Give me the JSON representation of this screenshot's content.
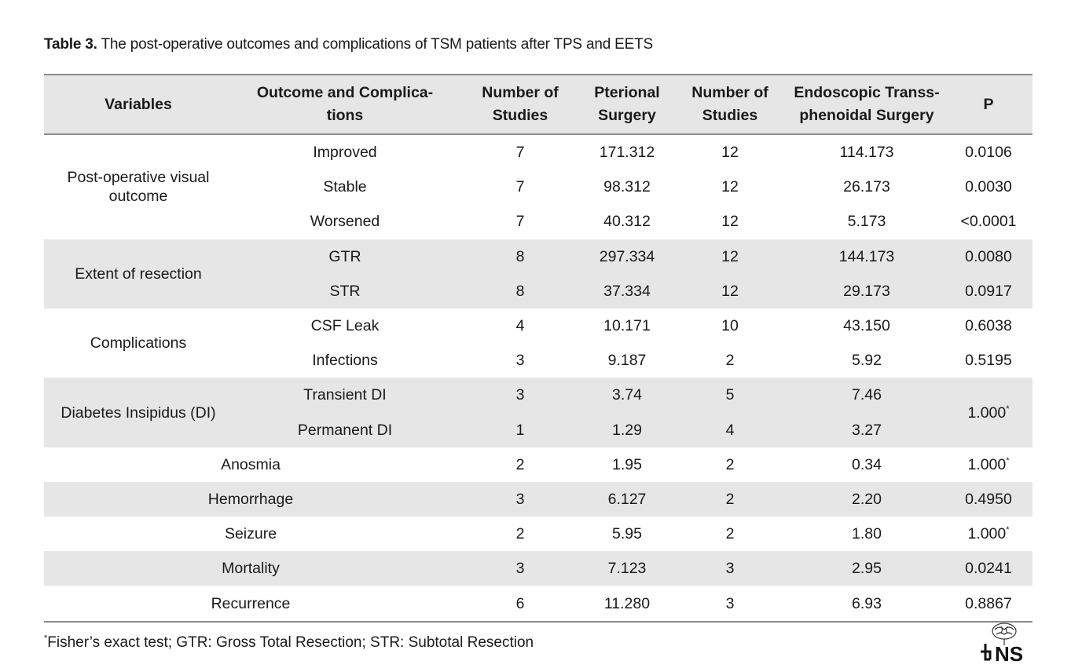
{
  "caption": {
    "label": "Table 3.",
    "text": " The post-operative outcomes and complications of TSM patients after TPS and EETS"
  },
  "headers": [
    [
      "Variables"
    ],
    [
      "Outcome and Complica-",
      "tions"
    ],
    [
      "Number of",
      "Studies"
    ],
    [
      "Pterional",
      "Surgery"
    ],
    [
      "Number of",
      "Studies"
    ],
    [
      "Endoscopic Transs-",
      "phenoidal Surgery"
    ],
    [
      "P"
    ]
  ],
  "groups": [
    {
      "variable": [
        "Post-operative visual",
        "outcome"
      ],
      "rows": [
        {
          "outcome": "Improved",
          "n1": "7",
          "pterional": "171.312",
          "n2": "12",
          "endoscopic": "114.173",
          "p": "0.0106"
        },
        {
          "outcome": "Stable",
          "n1": "7",
          "pterional": "98.312",
          "n2": "12",
          "endoscopic": "26.173",
          "p": "0.0030"
        },
        {
          "outcome": "Worsened",
          "n1": "7",
          "pterional": "40.312",
          "n2": "12",
          "endoscopic": "5.173",
          "p": "<0.0001"
        }
      ]
    },
    {
      "variable": [
        "Extent of resection"
      ],
      "rows": [
        {
          "outcome": "GTR",
          "n1": "8",
          "pterional": "297.334",
          "n2": "12",
          "endoscopic": "144.173",
          "p": "0.0080"
        },
        {
          "outcome": "STR",
          "n1": "8",
          "pterional": "37.334",
          "n2": "12",
          "endoscopic": "29.173",
          "p": "0.0917"
        }
      ]
    },
    {
      "variable": [
        "Complications"
      ],
      "rows": [
        {
          "outcome": "CSF Leak",
          "n1": "4",
          "pterional": "10.171",
          "n2": "10",
          "endoscopic": "43.150",
          "p": "0.6038"
        },
        {
          "outcome": "Infections",
          "n1": "3",
          "pterional": "9.187",
          "n2": "2",
          "endoscopic": "5.92",
          "p": "0.5195"
        }
      ]
    },
    {
      "variable": [
        "Diabetes Insipidus (DI)"
      ],
      "merged_p": "1.000",
      "merged_p_sup": "*",
      "rows": [
        {
          "outcome": "Transient DI",
          "n1": "3",
          "pterional": "3.74",
          "n2": "5",
          "endoscopic": "7.46"
        },
        {
          "outcome": "Permanent DI",
          "n1": "1",
          "pterional": "1.29",
          "n2": "4",
          "endoscopic": "3.27"
        }
      ]
    }
  ],
  "single_rows": [
    {
      "label": "Anosmia",
      "n1": "2",
      "pterional": "1.95",
      "n2": "2",
      "endoscopic": "0.34",
      "p": "1.000",
      "p_sup": "*"
    },
    {
      "label": "Hemorrhage",
      "n1": "3",
      "pterional": "6.127",
      "n2": "2",
      "endoscopic": "2.20",
      "p": "0.4950",
      "p_sup": ""
    },
    {
      "label": "Seizure",
      "n1": "2",
      "pterional": "5.95",
      "n2": "2",
      "endoscopic": "1.80",
      "p": "1.000",
      "p_sup": "*"
    },
    {
      "label": "Mortality",
      "n1": "3",
      "pterional": "7.123",
      "n2": "3",
      "endoscopic": "2.95",
      "p": "0.0241",
      "p_sup": ""
    },
    {
      "label": "Recurrence",
      "n1": "6",
      "pterional": "11.280",
      "n2": "3",
      "endoscopic": "6.93",
      "p": "0.8867",
      "p_sup": ""
    }
  ],
  "footnote": {
    "sup": "*",
    "text": "Fisher’s exact test; GTR: Gross Total Resection; STR: Subtotal Resection"
  },
  "logo": {
    "text": "NS"
  },
  "colors": {
    "shade": "#e6e6e7",
    "rule": "#8c8c8c"
  }
}
